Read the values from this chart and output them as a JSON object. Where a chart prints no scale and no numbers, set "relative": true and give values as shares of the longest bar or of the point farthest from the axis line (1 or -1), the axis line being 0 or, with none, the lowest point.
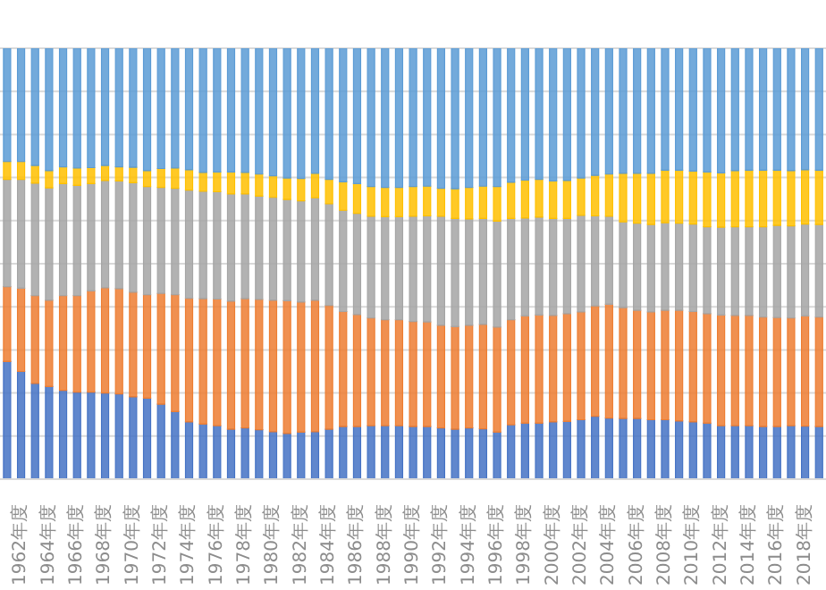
{
  "chart_data": {
    "type": "bar",
    "stacked": true,
    "relative": true,
    "grid": "y",
    "categories": [
      null,
      "1962年度",
      null,
      "1964年度",
      null,
      "1966年度",
      null,
      "1968年度",
      null,
      "1970年度",
      null,
      "1972年度",
      null,
      "1974年度",
      null,
      "1976年度",
      null,
      "1978年度",
      null,
      "1980年度",
      null,
      "1982年度",
      null,
      "1984年度",
      null,
      "1986年度",
      null,
      "1988年度",
      null,
      "1990年度",
      null,
      "1992年度",
      null,
      "1994年度",
      null,
      "1996年度",
      null,
      "1998年度",
      null,
      "2000年度",
      null,
      "2002年度",
      null,
      "2004年度",
      null,
      "2006年度",
      null,
      "2008年度",
      null,
      "2010年度",
      null,
      "2012年度",
      null,
      "2014年度",
      null,
      "2016年度",
      null,
      "2018年度",
      null
    ],
    "series": [
      {
        "color": "#4472c4",
        "values": [
          0.273,
          0.25,
          0.222,
          0.215,
          0.206,
          0.202,
          0.202,
          0.2,
          0.198,
          0.191,
          0.188,
          0.174,
          0.157,
          0.133,
          0.128,
          0.124,
          0.116,
          0.119,
          0.115,
          0.11,
          0.106,
          0.109,
          0.11,
          0.116,
          0.122,
          0.122,
          0.124,
          0.124,
          0.124,
          0.122,
          0.122,
          0.119,
          0.116,
          0.119,
          0.117,
          0.109,
          0.126,
          0.13,
          0.13,
          0.133,
          0.134,
          0.138,
          0.146,
          0.142,
          0.141,
          0.141,
          0.138,
          0.138,
          0.135,
          0.133,
          0.13,
          0.124,
          0.124,
          0.124,
          0.122,
          0.122,
          0.124,
          0.123,
          0.122
        ]
      },
      {
        "color": "#ed7d31",
        "values": [
          0.174,
          0.193,
          0.204,
          0.2,
          0.22,
          0.224,
          0.235,
          0.244,
          0.244,
          0.243,
          0.24,
          0.257,
          0.271,
          0.287,
          0.291,
          0.294,
          0.297,
          0.3,
          0.302,
          0.305,
          0.308,
          0.302,
          0.305,
          0.287,
          0.267,
          0.26,
          0.25,
          0.246,
          0.246,
          0.244,
          0.243,
          0.238,
          0.238,
          0.238,
          0.242,
          0.244,
          0.244,
          0.249,
          0.251,
          0.247,
          0.25,
          0.25,
          0.256,
          0.264,
          0.257,
          0.251,
          0.25,
          0.254,
          0.257,
          0.256,
          0.254,
          0.257,
          0.256,
          0.256,
          0.254,
          0.253,
          0.25,
          0.256,
          0.254
        ]
      },
      {
        "color": "#a5a5a5",
        "values": [
          0.249,
          0.253,
          0.261,
          0.261,
          0.26,
          0.256,
          0.249,
          0.249,
          0.25,
          0.254,
          0.251,
          0.246,
          0.247,
          0.251,
          0.249,
          0.249,
          0.249,
          0.243,
          0.24,
          0.239,
          0.235,
          0.235,
          0.238,
          0.236,
          0.235,
          0.235,
          0.236,
          0.239,
          0.239,
          0.244,
          0.246,
          0.253,
          0.251,
          0.247,
          0.246,
          0.246,
          0.235,
          0.227,
          0.227,
          0.225,
          0.221,
          0.224,
          0.209,
          0.204,
          0.199,
          0.202,
          0.203,
          0.203,
          0.202,
          0.203,
          0.202,
          0.204,
          0.206,
          0.206,
          0.21,
          0.214,
          0.214,
          0.213,
          0.215
        ]
      },
      {
        "color": "#ffc000",
        "values": [
          0.041,
          0.041,
          0.041,
          0.04,
          0.039,
          0.04,
          0.037,
          0.035,
          0.033,
          0.036,
          0.037,
          0.044,
          0.047,
          0.047,
          0.044,
          0.046,
          0.051,
          0.05,
          0.051,
          0.05,
          0.05,
          0.052,
          0.057,
          0.057,
          0.066,
          0.069,
          0.069,
          0.068,
          0.068,
          0.069,
          0.069,
          0.065,
          0.069,
          0.073,
          0.075,
          0.08,
          0.084,
          0.088,
          0.088,
          0.087,
          0.088,
          0.087,
          0.094,
          0.098,
          0.113,
          0.116,
          0.119,
          0.122,
          0.123,
          0.123,
          0.127,
          0.126,
          0.13,
          0.131,
          0.131,
          0.128,
          0.128,
          0.126,
          0.126
        ]
      },
      {
        "color": "#5b9bd5",
        "values": [
          0.263,
          0.263,
          0.272,
          0.284,
          0.275,
          0.278,
          0.277,
          0.272,
          0.275,
          0.276,
          0.284,
          0.279,
          0.278,
          0.282,
          0.288,
          0.287,
          0.287,
          0.288,
          0.292,
          0.296,
          0.301,
          0.302,
          0.29,
          0.304,
          0.31,
          0.314,
          0.321,
          0.323,
          0.323,
          0.321,
          0.32,
          0.325,
          0.326,
          0.323,
          0.32,
          0.321,
          0.311,
          0.306,
          0.304,
          0.308,
          0.307,
          0.301,
          0.295,
          0.292,
          0.29,
          0.29,
          0.29,
          0.283,
          0.283,
          0.285,
          0.287,
          0.289,
          0.284,
          0.283,
          0.283,
          0.283,
          0.284,
          0.282,
          0.283
        ]
      }
    ]
  }
}
